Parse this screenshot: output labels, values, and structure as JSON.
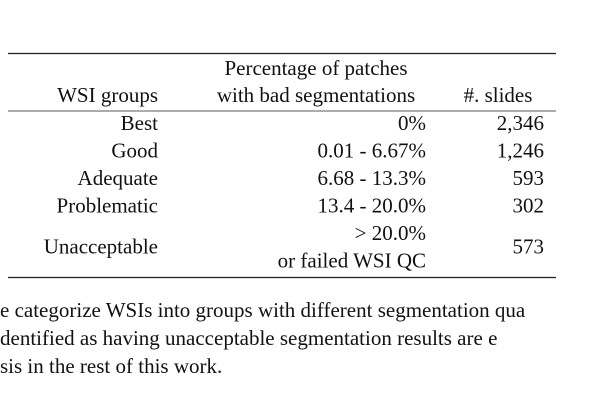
{
  "table": {
    "header": {
      "group": "WSI groups",
      "percentage": [
        "Percentage of patches",
        "with bad segmentations"
      ],
      "slides": "#. slides"
    },
    "rows": [
      {
        "group": "Best",
        "percentage": [
          "0%"
        ],
        "slides": "2,346"
      },
      {
        "group": "Good",
        "percentage": [
          "0.01 - 6.67%"
        ],
        "slides": "1,246"
      },
      {
        "group": "Adequate",
        "percentage": [
          "6.68 - 13.3%"
        ],
        "slides": "593"
      },
      {
        "group": "Problematic",
        "percentage": [
          "13.4 - 20.0%"
        ],
        "slides": "302"
      },
      {
        "group": "Unacceptable",
        "percentage": [
          "> 20.0%",
          "or failed WSI QC"
        ],
        "slides": "573"
      }
    ]
  },
  "paragraph": {
    "lines": [
      "e categorize WSIs into groups with different segmentation qua",
      "dentified as having unacceptable segmentation results are e",
      "sis in the rest of this work."
    ]
  }
}
